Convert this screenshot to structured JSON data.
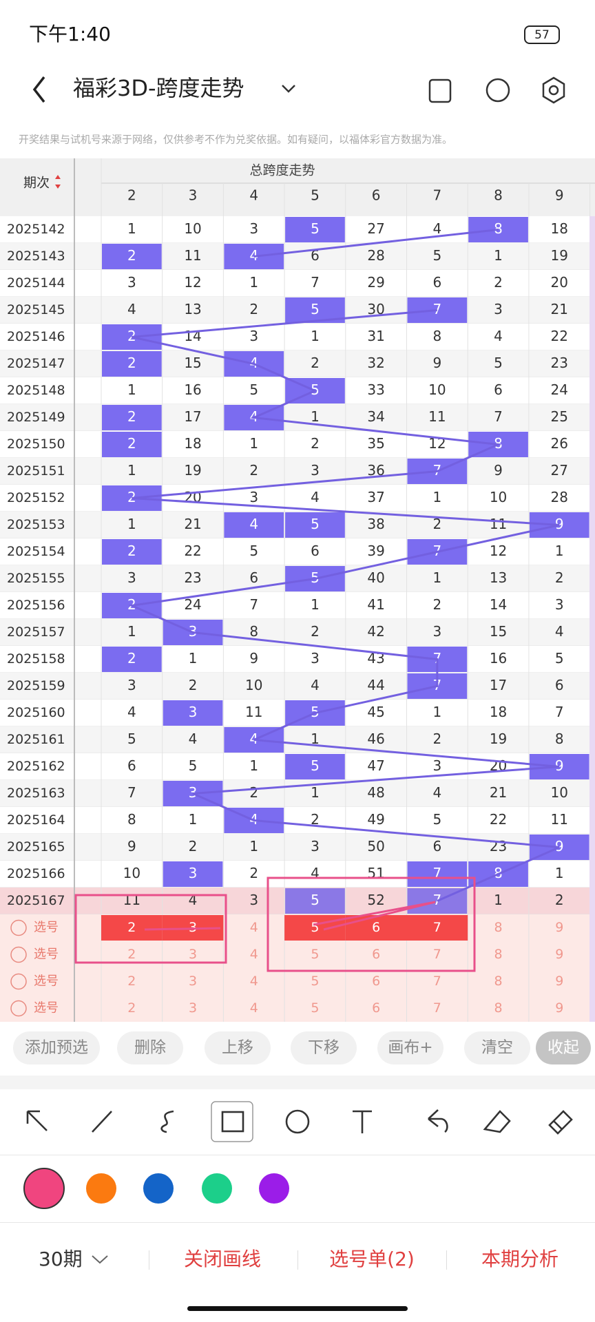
{
  "status": {
    "time": "下午1:40",
    "battery": "57"
  },
  "header": {
    "title": "福彩3D-跨度走势"
  },
  "notice": "开奖结果与试机号来源于网络，仅供参考不作为兑奖依据。如有疑问，以福体彩官方数据为准。",
  "table": {
    "period_header": "期次",
    "group_header": "总跨度走势",
    "columns": [
      2,
      3,
      4,
      5,
      6,
      7,
      8,
      9
    ],
    "rows": [
      {
        "period": "2025142",
        "cells": [
          1,
          10,
          3,
          5,
          27,
          4,
          8,
          18
        ]
      },
      {
        "period": "2025143",
        "cells": [
          2,
          11,
          4,
          6,
          28,
          5,
          1,
          19
        ]
      },
      {
        "period": "2025144",
        "cells": [
          3,
          12,
          1,
          7,
          29,
          6,
          2,
          20
        ]
      },
      {
        "period": "2025145",
        "cells": [
          4,
          13,
          2,
          5,
          30,
          7,
          3,
          21
        ]
      },
      {
        "period": "2025146",
        "cells": [
          2,
          14,
          3,
          1,
          31,
          8,
          4,
          22
        ]
      },
      {
        "period": "2025147",
        "cells": [
          2,
          15,
          4,
          2,
          32,
          9,
          5,
          23
        ]
      },
      {
        "period": "2025148",
        "cells": [
          1,
          16,
          5,
          5,
          33,
          10,
          6,
          24
        ]
      },
      {
        "period": "2025149",
        "cells": [
          2,
          17,
          4,
          1,
          34,
          11,
          7,
          25
        ]
      },
      {
        "period": "2025150",
        "cells": [
          2,
          18,
          1,
          2,
          35,
          12,
          8,
          26
        ]
      },
      {
        "period": "2025151",
        "cells": [
          1,
          19,
          2,
          3,
          36,
          7,
          9,
          27
        ]
      },
      {
        "period": "2025152",
        "cells": [
          2,
          20,
          3,
          4,
          37,
          1,
          10,
          28
        ]
      },
      {
        "period": "2025153",
        "cells": [
          1,
          21,
          4,
          5,
          38,
          2,
          11,
          9
        ]
      },
      {
        "period": "2025154",
        "cells": [
          2,
          22,
          5,
          6,
          39,
          7,
          12,
          1
        ]
      },
      {
        "period": "2025155",
        "cells": [
          3,
          23,
          6,
          5,
          40,
          1,
          13,
          2
        ]
      },
      {
        "period": "2025156",
        "cells": [
          2,
          24,
          7,
          1,
          41,
          2,
          14,
          3
        ]
      },
      {
        "period": "2025157",
        "cells": [
          1,
          3,
          8,
          2,
          42,
          3,
          15,
          4
        ]
      },
      {
        "period": "2025158",
        "cells": [
          2,
          1,
          9,
          3,
          43,
          7,
          16,
          5
        ]
      },
      {
        "period": "2025159",
        "cells": [
          3,
          2,
          10,
          4,
          44,
          7,
          17,
          6
        ]
      },
      {
        "period": "2025160",
        "cells": [
          4,
          3,
          11,
          5,
          45,
          1,
          18,
          7
        ]
      },
      {
        "period": "2025161",
        "cells": [
          5,
          4,
          4,
          1,
          46,
          2,
          19,
          8
        ]
      },
      {
        "period": "2025162",
        "cells": [
          6,
          5,
          1,
          5,
          47,
          3,
          20,
          9
        ]
      },
      {
        "period": "2025163",
        "cells": [
          7,
          3,
          2,
          1,
          48,
          4,
          21,
          10
        ]
      },
      {
        "period": "2025164",
        "cells": [
          8,
          1,
          4,
          2,
          49,
          5,
          22,
          11
        ]
      },
      {
        "period": "2025165",
        "cells": [
          9,
          2,
          1,
          3,
          50,
          6,
          23,
          9
        ]
      },
      {
        "period": "2025166",
        "cells": [
          10,
          3,
          2,
          4,
          51,
          7,
          8,
          1
        ]
      },
      {
        "period": "2025167",
        "cells": [
          11,
          4,
          3,
          5,
          52,
          7,
          1,
          2
        ],
        "current": true
      }
    ],
    "select_rows": [
      {
        "label": "选号",
        "cells": [
          2,
          3,
          4,
          5,
          6,
          7,
          8,
          9
        ],
        "selected": [
          true,
          true,
          false,
          true,
          true,
          true,
          false,
          false
        ]
      },
      {
        "label": "选号",
        "cells": [
          2,
          3,
          4,
          5,
          6,
          7,
          8,
          9
        ],
        "selected": [
          false,
          false,
          false,
          false,
          false,
          false,
          false,
          false
        ]
      },
      {
        "label": "选号",
        "cells": [
          2,
          3,
          4,
          5,
          6,
          7,
          8,
          9
        ],
        "selected": [
          false,
          false,
          false,
          false,
          false,
          false,
          false,
          false
        ]
      },
      {
        "label": "选号",
        "cells": [
          2,
          3,
          4,
          5,
          6,
          7,
          8,
          9
        ],
        "selected": [
          false,
          false,
          false,
          false,
          false,
          false,
          false,
          false
        ]
      }
    ]
  },
  "actions": [
    "添加预选",
    "删除",
    "上移",
    "下移",
    "画布+",
    "清空",
    "收起"
  ],
  "bottom": {
    "periods": "30期",
    "close_lines": "关闭画线",
    "pick_list": "选号单(2)",
    "analysis": "本期分析"
  }
}
